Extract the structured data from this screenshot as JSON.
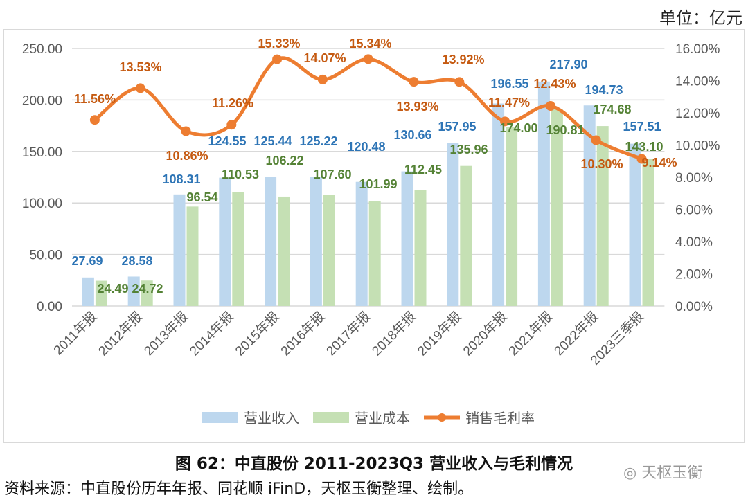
{
  "unit_label": "单位：亿元",
  "caption": "图  62：中直股份 2011-2023Q3 营业收入与毛利情况",
  "source": "资料来源：中直股份历年年报、同花顺 iFinD，天枢玉衡整理、绘制。",
  "watermark": "天枢玉衡",
  "chart_data": {
    "type": "bar+line",
    "categories": [
      "2011年报",
      "2012年报",
      "2013年报",
      "2014年报",
      "2015年报",
      "2016年报",
      "2017年报",
      "2018年报",
      "2019年报",
      "2020年报",
      "2021年报",
      "2022年报",
      "2023三季报"
    ],
    "series": [
      {
        "name": "营业收入",
        "type": "bar",
        "axis": "left",
        "color": "#BDD7EE",
        "label_color": "#2E75B6",
        "values": [
          27.69,
          28.58,
          108.31,
          124.55,
          125.44,
          125.22,
          120.48,
          130.66,
          157.95,
          196.55,
          217.9,
          194.73,
          157.51
        ],
        "labels": [
          "27.69",
          "28.58",
          "108.31",
          "124.55",
          "125.44",
          "125.22",
          "120.48",
          "130.66",
          "157.95",
          "196.55",
          "217.90",
          "194.73",
          "157.51"
        ]
      },
      {
        "name": "营业成本",
        "type": "bar",
        "axis": "left",
        "color": "#C5E0B4",
        "label_color": "#548235",
        "values": [
          24.49,
          24.72,
          96.54,
          110.53,
          106.22,
          107.6,
          101.99,
          112.45,
          135.96,
          174.0,
          190.81,
          174.68,
          143.1
        ],
        "labels": [
          "24.49",
          "24.72",
          "96.54",
          "110.53",
          "106.22",
          "107.60",
          "101.99",
          "112.45",
          "135.96",
          "174.00",
          "190.81",
          "174.68",
          "143.10"
        ]
      },
      {
        "name": "销售毛利率",
        "type": "line",
        "axis": "right",
        "color": "#ED7D31",
        "label_color": "#C55A11",
        "values": [
          11.56,
          13.53,
          10.86,
          11.26,
          15.33,
          14.07,
          15.34,
          13.93,
          13.92,
          11.47,
          12.43,
          10.3,
          9.14
        ],
        "labels": [
          "11.56%",
          "13.53%",
          "10.86%",
          "11.26%",
          "15.33%",
          "14.07%",
          "15.34%",
          "13.93%",
          "13.92%",
          "11.47%",
          "12.43%",
          "10.30%",
          "9.14%"
        ]
      }
    ],
    "left_axis": {
      "range": [
        0,
        250
      ],
      "ticks": [
        "0.00",
        "50.00",
        "100.00",
        "150.00",
        "200.00",
        "250.00"
      ]
    },
    "right_axis": {
      "range": [
        0,
        16
      ],
      "ticks": [
        "0.00%",
        "2.00%",
        "4.00%",
        "6.00%",
        "8.00%",
        "10.00%",
        "12.00%",
        "14.00%",
        "16.00%"
      ]
    },
    "grid": "horizontal",
    "legend": "bottom"
  }
}
